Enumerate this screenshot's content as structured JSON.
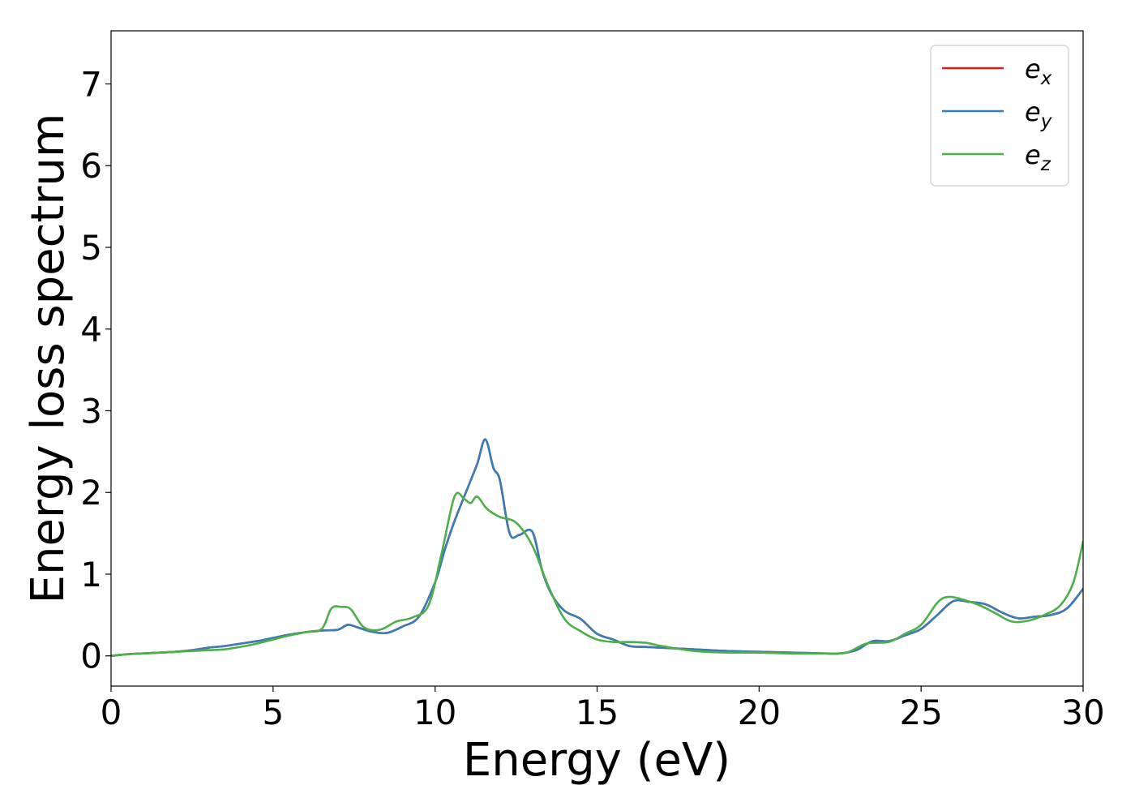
{
  "chart_data": {
    "type": "line",
    "title": "",
    "xlabel": "Energy (eV)",
    "ylabel": "Energy loss spectrum",
    "xlim": [
      0,
      30
    ],
    "ylim": [
      -0.37,
      7.65
    ],
    "xticks": [
      0,
      5,
      10,
      15,
      20,
      25,
      30
    ],
    "yticks": [
      0,
      1,
      2,
      3,
      4,
      5,
      6,
      7
    ],
    "xtick_labels": [
      "0",
      "5",
      "10",
      "15",
      "20",
      "25",
      "30"
    ],
    "ytick_labels": [
      "0",
      "1",
      "2",
      "3",
      "4",
      "5",
      "6",
      "7"
    ],
    "grid": false,
    "legend_position": "top-right",
    "series": [
      {
        "name": "e_x",
        "legend_base": "e",
        "legend_sub": "x",
        "color": "#e41a1c",
        "x": [
          0,
          0.5,
          1,
          1.5,
          2,
          2.5,
          3,
          3.5,
          4,
          4.5,
          5,
          5.5,
          6,
          6.5,
          7,
          7.3,
          7.6,
          8,
          8.5,
          9,
          9.5,
          10,
          10.3,
          10.6,
          11,
          11.3,
          11.55,
          11.8,
          12,
          12.3,
          12.6,
          13,
          13.3,
          13.6,
          14,
          14.5,
          15,
          15.5,
          16,
          16.5,
          17,
          17.5,
          18,
          19,
          20,
          21,
          22,
          22.5,
          23,
          23.5,
          24,
          24.5,
          25,
          25.5,
          26,
          26.5,
          27,
          27.5,
          28,
          28.5,
          29,
          29.5,
          30
        ],
        "y": [
          0,
          0.02,
          0.03,
          0.04,
          0.05,
          0.07,
          0.1,
          0.12,
          0.15,
          0.18,
          0.22,
          0.26,
          0.29,
          0.31,
          0.32,
          0.38,
          0.35,
          0.3,
          0.28,
          0.36,
          0.48,
          0.9,
          1.3,
          1.65,
          2.05,
          2.35,
          2.65,
          2.3,
          2.15,
          1.5,
          1.48,
          1.52,
          1.05,
          0.75,
          0.55,
          0.45,
          0.27,
          0.2,
          0.12,
          0.11,
          0.1,
          0.09,
          0.08,
          0.06,
          0.05,
          0.04,
          0.03,
          0.03,
          0.07,
          0.18,
          0.18,
          0.25,
          0.33,
          0.5,
          0.67,
          0.66,
          0.63,
          0.53,
          0.46,
          0.48,
          0.5,
          0.58,
          0.82
        ]
      },
      {
        "name": "e_y",
        "legend_base": "e",
        "legend_sub": "y",
        "color": "#377eb8",
        "x": [
          0,
          0.5,
          1,
          1.5,
          2,
          2.5,
          3,
          3.5,
          4,
          4.5,
          5,
          5.5,
          6,
          6.5,
          7,
          7.3,
          7.6,
          8,
          8.5,
          9,
          9.5,
          10,
          10.3,
          10.6,
          11,
          11.3,
          11.55,
          11.8,
          12,
          12.3,
          12.6,
          13,
          13.3,
          13.6,
          14,
          14.5,
          15,
          15.5,
          16,
          16.5,
          17,
          17.5,
          18,
          19,
          20,
          21,
          22,
          22.5,
          23,
          23.5,
          24,
          24.5,
          25,
          25.5,
          26,
          26.5,
          27,
          27.5,
          28,
          28.5,
          29,
          29.5,
          30
        ],
        "y": [
          0,
          0.02,
          0.03,
          0.04,
          0.05,
          0.07,
          0.1,
          0.12,
          0.15,
          0.18,
          0.22,
          0.26,
          0.29,
          0.31,
          0.32,
          0.38,
          0.35,
          0.3,
          0.28,
          0.36,
          0.48,
          0.9,
          1.3,
          1.65,
          2.05,
          2.35,
          2.65,
          2.3,
          2.15,
          1.5,
          1.48,
          1.52,
          1.05,
          0.75,
          0.55,
          0.45,
          0.27,
          0.2,
          0.12,
          0.11,
          0.1,
          0.09,
          0.08,
          0.06,
          0.05,
          0.04,
          0.03,
          0.03,
          0.07,
          0.18,
          0.18,
          0.25,
          0.33,
          0.5,
          0.67,
          0.66,
          0.63,
          0.53,
          0.46,
          0.48,
          0.5,
          0.58,
          0.82
        ]
      },
      {
        "name": "e_z",
        "legend_base": "e",
        "legend_sub": "z",
        "color": "#4daf4a",
        "x": [
          0,
          0.5,
          1,
          1.5,
          2,
          2.5,
          3,
          3.5,
          4,
          4.5,
          5,
          5.5,
          6,
          6.5,
          6.8,
          7.1,
          7.4,
          7.8,
          8.3,
          8.8,
          9.3,
          9.8,
          10.2,
          10.6,
          10.9,
          11.1,
          11.3,
          11.6,
          12,
          12.5,
          13,
          13.5,
          14,
          14.5,
          15,
          15.5,
          16,
          16.5,
          17,
          18,
          19,
          20,
          21,
          22,
          22.7,
          23.3,
          24,
          24.5,
          25,
          25.5,
          25.8,
          26.2,
          26.8,
          27.3,
          27.8,
          28.3,
          28.8,
          29.3,
          29.7,
          30
        ],
        "y": [
          0,
          0.02,
          0.03,
          0.04,
          0.05,
          0.06,
          0.07,
          0.08,
          0.11,
          0.15,
          0.2,
          0.25,
          0.29,
          0.33,
          0.58,
          0.6,
          0.57,
          0.35,
          0.32,
          0.42,
          0.47,
          0.62,
          1.25,
          1.95,
          1.92,
          1.87,
          1.95,
          1.8,
          1.7,
          1.63,
          1.35,
          0.85,
          0.45,
          0.3,
          0.2,
          0.17,
          0.17,
          0.16,
          0.12,
          0.06,
          0.04,
          0.04,
          0.03,
          0.03,
          0.04,
          0.15,
          0.17,
          0.27,
          0.38,
          0.65,
          0.72,
          0.7,
          0.62,
          0.52,
          0.42,
          0.43,
          0.5,
          0.62,
          0.9,
          1.4
        ]
      }
    ]
  }
}
